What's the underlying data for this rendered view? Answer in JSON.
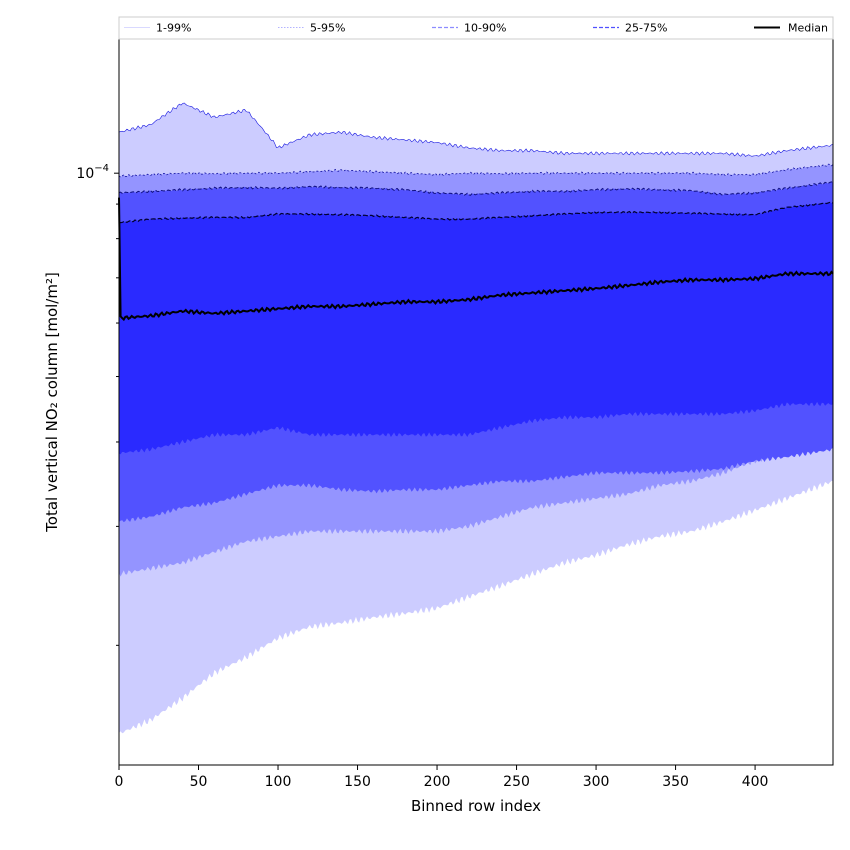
{
  "chart_data": {
    "type": "area",
    "title": "",
    "xlabel": "Binned row index",
    "ylabel": "Total vertical NO₂ column [mol/m²]",
    "xlim": [
      0,
      449
    ],
    "ylim": [
      1.33e-05,
      0.000158
    ],
    "yscale": "log",
    "x_ticks": [
      0,
      50,
      100,
      150,
      200,
      250,
      300,
      350,
      400
    ],
    "y_major_tick": {
      "value": 0.0001,
      "label": "10",
      "exponent": "−4"
    },
    "y_minor_ticks": [
      2e-05,
      3e-05,
      4e-05,
      5e-05,
      6e-05,
      7e-05,
      8e-05,
      9e-05
    ],
    "legend": {
      "placement": "top, horizontal above plot",
      "entries": [
        {
          "label": "1-99%",
          "style": "thin-solid",
          "color": "#ccccff"
        },
        {
          "label": "5-95%",
          "style": "thin-dotted",
          "color": "#9a9aff"
        },
        {
          "label": "10-90%",
          "style": "dashed",
          "color": "#8c8cff"
        },
        {
          "label": "25-75%",
          "style": "dashed",
          "color": "#5050ff"
        },
        {
          "label": "Median",
          "style": "solid-thick",
          "color": "#000000"
        }
      ]
    },
    "colors": {
      "band_1_99": "#ccccff",
      "band_5_95": "#9494ff",
      "band_10_90": "#5252ff",
      "band_25_75": "#2a2aff",
      "median": "#000000"
    },
    "x": [
      0,
      20,
      40,
      60,
      80,
      100,
      120,
      140,
      160,
      180,
      200,
      220,
      240,
      260,
      280,
      300,
      320,
      340,
      360,
      380,
      400,
      420,
      449
    ],
    "series": [
      {
        "name": "99%",
        "values": [
          0.000115,
          0.000118,
          0.000127,
          0.000121,
          0.000124,
          0.000109,
          0.000114,
          0.000115,
          0.000113,
          0.000112,
          0.000111,
          0.000109,
          0.000108,
          0.000108,
          0.000107,
          0.000107,
          0.000107,
          0.000107,
          0.000107,
          0.000107,
          0.000106,
          0.000108,
          0.00011
        ]
      },
      {
        "name": "95%",
        "values": [
          9.9e-05,
          9.95e-05,
          0.0001,
          9.98e-05,
          0.0001,
          0.0001,
          0.0001005,
          0.000101,
          0.0001005,
          0.0001,
          9.95e-05,
          0.0001,
          9.98e-05,
          0.0001,
          0.0001,
          0.0001,
          0.0001,
          0.0001,
          0.0001,
          9.95e-05,
          9.95e-05,
          0.0001012,
          0.000103
        ]
      },
      {
        "name": "90%",
        "values": [
          9.35e-05,
          9.4e-05,
          9.45e-05,
          9.5e-05,
          9.52e-05,
          9.5e-05,
          9.55e-05,
          9.52e-05,
          9.5e-05,
          9.45e-05,
          9.35e-05,
          9.3e-05,
          9.35e-05,
          9.4e-05,
          9.4e-05,
          9.45e-05,
          9.48e-05,
          9.45e-05,
          9.42e-05,
          9.3e-05,
          9.35e-05,
          9.5e-05,
          9.7e-05
        ]
      },
      {
        "name": "75%",
        "values": [
          8.45e-05,
          8.55e-05,
          8.58e-05,
          8.6e-05,
          8.6e-05,
          8.7e-05,
          8.7e-05,
          8.68e-05,
          8.65e-05,
          8.6e-05,
          8.55e-05,
          8.55e-05,
          8.6e-05,
          8.65e-05,
          8.7e-05,
          8.75e-05,
          8.75e-05,
          8.75e-05,
          8.72e-05,
          8.7e-05,
          8.68e-05,
          8.9e-05,
          9.05e-05
        ]
      },
      {
        "name": "Median",
        "values": [
          6.1e-05,
          6.15e-05,
          6.25e-05,
          6.2e-05,
          6.25e-05,
          6.3e-05,
          6.35e-05,
          6.35e-05,
          6.4e-05,
          6.45e-05,
          6.45e-05,
          6.5e-05,
          6.6e-05,
          6.65e-05,
          6.7e-05,
          6.75e-05,
          6.82e-05,
          6.9e-05,
          6.95e-05,
          6.95e-05,
          6.98e-05,
          7.1e-05,
          7.1e-05
        ]
      },
      {
        "name": "25%",
        "values": [
          3.85e-05,
          3.9e-05,
          4e-05,
          4.1e-05,
          4.1e-05,
          4.2e-05,
          4.1e-05,
          4.1e-05,
          4.1e-05,
          4.1e-05,
          4.1e-05,
          4.1e-05,
          4.2e-05,
          4.3e-05,
          4.35e-05,
          4.35e-05,
          4.4e-05,
          4.4e-05,
          4.4e-05,
          4.4e-05,
          4.45e-05,
          4.55e-05,
          4.55e-05
        ]
      },
      {
        "name": "10%",
        "values": [
          3.05e-05,
          3.1e-05,
          3.2e-05,
          3.25e-05,
          3.35e-05,
          3.45e-05,
          3.45e-05,
          3.4e-05,
          3.38e-05,
          3.4e-05,
          3.4e-05,
          3.45e-05,
          3.5e-05,
          3.5e-05,
          3.55e-05,
          3.6e-05,
          3.6e-05,
          3.6e-05,
          3.62e-05,
          3.65e-05,
          3.75e-05,
          3.8e-05,
          3.9e-05
        ]
      },
      {
        "name": "5%",
        "values": [
          2.55e-05,
          2.6e-05,
          2.65e-05,
          2.75e-05,
          2.85e-05,
          2.9e-05,
          2.95e-05,
          2.95e-05,
          2.95e-05,
          2.95e-05,
          2.95e-05,
          3e-05,
          3.1e-05,
          3.2e-05,
          3.25e-05,
          3.3e-05,
          3.35e-05,
          3.45e-05,
          3.5e-05,
          3.6e-05,
          3.75e-05,
          3.85e-05,
          3.95e-05
        ]
      },
      {
        "name": "1%",
        "values": [
          1.48e-05,
          1.55e-05,
          1.67e-05,
          1.82e-05,
          1.92e-05,
          2.05e-05,
          2.13e-05,
          2.16e-05,
          2.2e-05,
          2.23e-05,
          2.27e-05,
          2.36e-05,
          2.45e-05,
          2.55e-05,
          2.65e-05,
          2.72e-05,
          2.82e-05,
          2.9e-05,
          2.95e-05,
          3.05e-05,
          3.17e-05,
          3.3e-05,
          3.5e-05
        ]
      }
    ]
  }
}
